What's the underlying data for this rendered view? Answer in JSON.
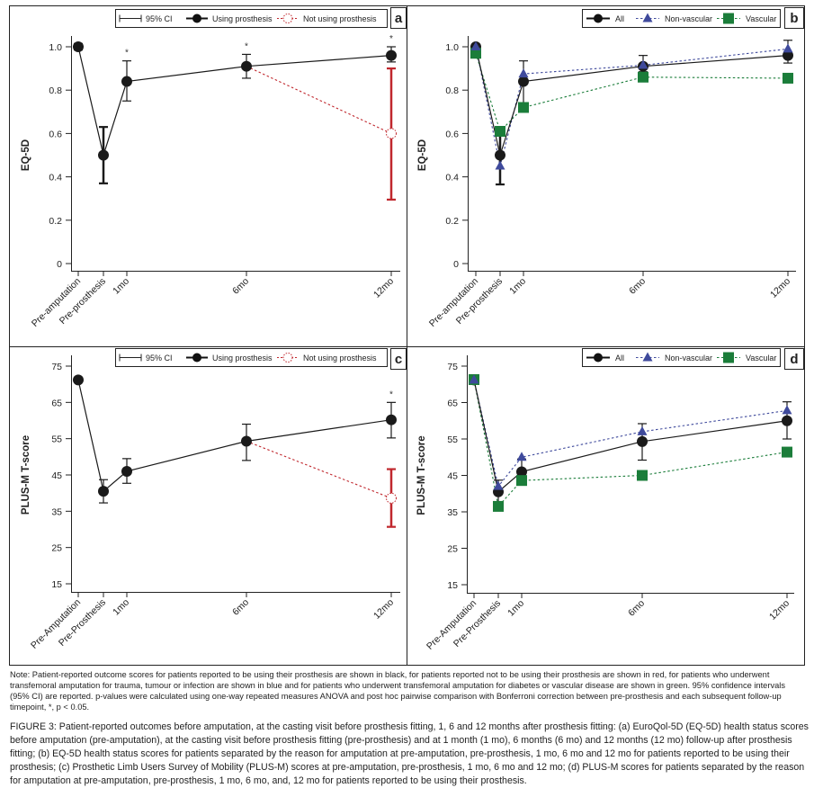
{
  "figure": {
    "note": "Note: Patient-reported outcome scores for patients reported to be using their prosthesis are shown in black, for patients reported not to be using their prosthesis are shown in red, for patients who underwent transfemoral amputation for trauma, tumour or infection are shown in blue and for patients who underwent transfemoral amputation for diabetes or vascular disease are shown in green. 95% confidence intervals (95% CI) are reported. p-values were calculated using one-way repeated measures ANOVA and post hoc pairwise comparison with Bonferroni correction between pre-prosthesis and each subsequent follow-up timepoint, *, p < 0.05.",
    "caption_label": "FIGURE 3:",
    "caption": "Patient-reported outcomes before amputation, at the casting visit before prosthesis fitting, 1, 6 and 12 months after prosthesis fitting: (a) EuroQol-5D (EQ-5D) health status scores before amputation (pre-amputation), at the casting visit before prosthesis fitting (pre-prosthesis) and at 1 month (1 mo), 6 months (6 mo) and 12 months (12 mo) follow-up after prosthesis fitting; (b) EQ-5D health status scores for patients separated by the reason for amputation at pre-amputation, pre-prosthesis, 1 mo, 6 mo and 12 mo for patients reported to be using their prosthesis; (c) Prosthetic Limb Users Survey of Mobility (PLUS-M) scores at pre-amputation, pre-prosthesis, 1 mo, 6 mo and 12 mo; (d) PLUS-M scores for patients separated by the reason for amputation at pre-amputation, pre-prosthesis, 1 mo, 6 mo, and, 12 mo for patients reported to be using their prosthesis."
  },
  "colors": {
    "using": "#1a1a1a",
    "not_using": "#c0272d",
    "non_vascular": "#3f4a9c",
    "vascular": "#1b7d3a"
  },
  "chart_data": [
    {
      "panel": "a",
      "type": "line",
      "ylabel": "EQ-5D",
      "xlabel": "",
      "categories": [
        "Pre-amputation",
        "Pre-prosthesis",
        "1mo",
        "6mo",
        "12mo"
      ],
      "x_months": [
        -2,
        -1,
        1,
        6,
        12
      ],
      "ylim": [
        0,
        1.0
      ],
      "yticks": [
        "0",
        "0.2",
        "0.4",
        "0.6",
        "0.8",
        "1.0"
      ],
      "ytick_values": [
        0,
        0.2,
        0.4,
        0.6,
        0.8,
        1.0
      ],
      "legend": [
        "95% CI",
        "Using prosthesis",
        "Not using prosthesis"
      ],
      "legend_position": "top-right",
      "series": [
        {
          "name": "Using prosthesis",
          "style": "solid-circle",
          "color_key": "using",
          "values": [
            1.0,
            0.5,
            0.84,
            0.91,
            0.96
          ],
          "ci_low": [
            0.985,
            0.37,
            0.75,
            0.855,
            0.93
          ],
          "ci_high": [
            1.015,
            0.63,
            0.935,
            0.965,
            1.0
          ]
        },
        {
          "name": "Not using prosthesis",
          "style": "dashed-open-circle",
          "color_key": "not_using",
          "indices": [
            3,
            4
          ],
          "values": [
            0.91,
            0.6
          ],
          "ci_low": [
            null,
            0.295
          ],
          "ci_high": [
            null,
            0.9
          ]
        }
      ],
      "significance": [
        "",
        "",
        "*",
        "*",
        "*"
      ]
    },
    {
      "panel": "b",
      "type": "line",
      "ylabel": "EQ-5D",
      "xlabel": "",
      "categories": [
        "Pre-amputation",
        "Pre-prosthesis",
        "1mo",
        "6mo",
        "12mo"
      ],
      "x_months": [
        -2,
        -1,
        1,
        6,
        12
      ],
      "ylim": [
        0,
        1.0
      ],
      "yticks": [
        "0",
        "0.2",
        "0.4",
        "0.6",
        "0.8",
        "1.0"
      ],
      "ytick_values": [
        0,
        0.2,
        0.4,
        0.6,
        0.8,
        1.0
      ],
      "legend": [
        "All",
        "Non-vascular",
        "Vascular"
      ],
      "legend_position": "top-right",
      "series": [
        {
          "name": "All",
          "style": "solid-circle",
          "color_key": "using",
          "values": [
            1.0,
            0.5,
            0.84,
            0.91,
            0.96
          ],
          "ci_low": [
            null,
            0.365,
            0.74,
            0.885,
            0.925
          ],
          "ci_high": [
            null,
            0.63,
            0.935,
            0.96,
            1.03
          ]
        },
        {
          "name": "Non-vascular",
          "style": "dashed-triangle",
          "color_key": "non_vascular",
          "values": [
            1.0,
            0.45,
            0.875,
            0.915,
            0.99
          ]
        },
        {
          "name": "Vascular",
          "style": "dashed-square",
          "color_key": "vascular",
          "values": [
            0.97,
            0.61,
            0.72,
            0.86,
            0.855
          ]
        }
      ]
    },
    {
      "panel": "c",
      "type": "line",
      "ylabel": "PLUS-M T-score",
      "xlabel": "",
      "categories": [
        "Pre-Amputation",
        "Pre-Prosthesis",
        "1mo",
        "6mo",
        "12mo"
      ],
      "x_months": [
        -2,
        -1,
        1,
        6,
        12
      ],
      "ylim": [
        15,
        75
      ],
      "yticks": [
        "15",
        "25",
        "35",
        "45",
        "55",
        "65",
        "75"
      ],
      "ytick_values": [
        15,
        25,
        35,
        45,
        55,
        65,
        75
      ],
      "legend": [
        "95% CI",
        "Using prosthesis",
        "Not using prosthesis"
      ],
      "legend_position": "top-right",
      "series": [
        {
          "name": "Using prosthesis",
          "style": "solid-circle",
          "color_key": "using",
          "values": [
            71.2,
            40.5,
            46.0,
            54.3,
            60.2
          ],
          "ci_low": [
            null,
            37.3,
            42.7,
            49.0,
            55.2
          ],
          "ci_high": [
            null,
            43.7,
            49.5,
            59.0,
            65.0
          ]
        },
        {
          "name": "Not using prosthesis",
          "style": "dashed-open-circle",
          "color_key": "not_using",
          "indices": [
            3,
            4
          ],
          "values": [
            54.3,
            38.6
          ],
          "ci_low": [
            null,
            30.7
          ],
          "ci_high": [
            null,
            46.6
          ]
        }
      ],
      "significance": [
        "",
        "",
        "",
        "",
        "*"
      ]
    },
    {
      "panel": "d",
      "type": "line",
      "ylabel": "PLUS-M T-score",
      "xlabel": "",
      "categories": [
        "Pre-Amputation",
        "Pre-Prosthesis",
        "1mo",
        "6mo",
        "12mo"
      ],
      "x_months": [
        -2,
        -1,
        1,
        6,
        12
      ],
      "ylim": [
        15,
        75
      ],
      "yticks": [
        "15",
        "25",
        "35",
        "45",
        "55",
        "65",
        "75"
      ],
      "ytick_values": [
        15,
        25,
        35,
        45,
        55,
        65,
        75
      ],
      "legend": [
        "All",
        "Non-vascular",
        "Vascular"
      ],
      "legend_position": "top-right",
      "series": [
        {
          "name": "All",
          "style": "solid-circle",
          "color_key": "using",
          "values": [
            71.2,
            40.5,
            46.0,
            54.3,
            60.0
          ],
          "ci_low": [
            null,
            37.3,
            42.7,
            49.2,
            55.0
          ],
          "ci_high": [
            null,
            43.7,
            49.5,
            59.2,
            65.2
          ]
        },
        {
          "name": "Non-vascular",
          "style": "dashed-triangle",
          "color_key": "non_vascular",
          "values": [
            71.2,
            42.0,
            50.0,
            57.0,
            62.8
          ]
        },
        {
          "name": "Vascular",
          "style": "dashed-square",
          "color_key": "vascular",
          "values": [
            71.3,
            36.5,
            43.6,
            45.0,
            51.4
          ]
        }
      ]
    }
  ]
}
